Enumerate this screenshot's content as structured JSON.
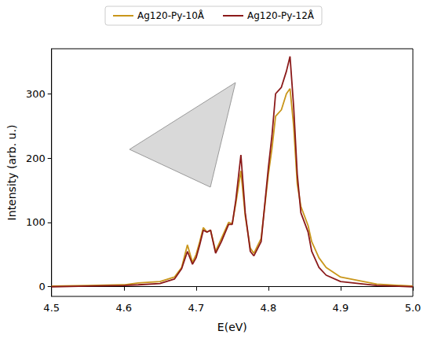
{
  "chart_data": {
    "type": "line",
    "x_label": "E(eV)",
    "y_label": "Intensity (arb. u.)",
    "x": [
      4.5,
      4.55,
      4.6,
      4.62,
      4.65,
      4.67,
      4.68,
      4.688,
      4.695,
      4.7,
      4.705,
      4.71,
      4.715,
      4.72,
      4.727,
      4.735,
      4.745,
      4.75,
      4.755,
      4.762,
      4.768,
      4.775,
      4.78,
      4.79,
      4.8,
      4.805,
      4.81,
      4.818,
      4.825,
      4.83,
      4.835,
      4.84,
      4.845,
      4.855,
      4.86,
      4.87,
      4.88,
      4.9,
      4.95,
      5.0
    ],
    "series": [
      {
        "name": "Ag120-Py-10Å",
        "color": "#c9961a",
        "line_style": "solid",
        "values": [
          1,
          2,
          3,
          6,
          8,
          15,
          30,
          65,
          38,
          50,
          70,
          92,
          85,
          88,
          55,
          75,
          100,
          98,
          130,
          180,
          110,
          60,
          52,
          75,
          175,
          215,
          265,
          275,
          300,
          308,
          250,
          160,
          125,
          95,
          70,
          45,
          30,
          15,
          4,
          1
        ]
      },
      {
        "name": "Ag120-Py-12Å",
        "color": "#8b1a1a",
        "line_style": "solid",
        "values": [
          0,
          1,
          2,
          3,
          5,
          12,
          28,
          55,
          35,
          45,
          65,
          88,
          85,
          88,
          52,
          70,
          97,
          97,
          135,
          205,
          115,
          55,
          48,
          70,
          185,
          235,
          300,
          310,
          335,
          358,
          280,
          175,
          115,
          85,
          55,
          30,
          18,
          8,
          2,
          0
        ]
      }
    ],
    "xlim": [
      4.5,
      5.0
    ],
    "xticks": [
      4.5,
      4.6,
      4.7,
      4.8,
      4.9,
      {
        "value": 5.0,
        "label": "5.0"
      }
    ],
    "ylim": [
      -15,
      370
    ],
    "yticks": [
      0,
      100,
      200,
      300
    ],
    "grid": false,
    "legend": "top",
    "marker": "none"
  }
}
